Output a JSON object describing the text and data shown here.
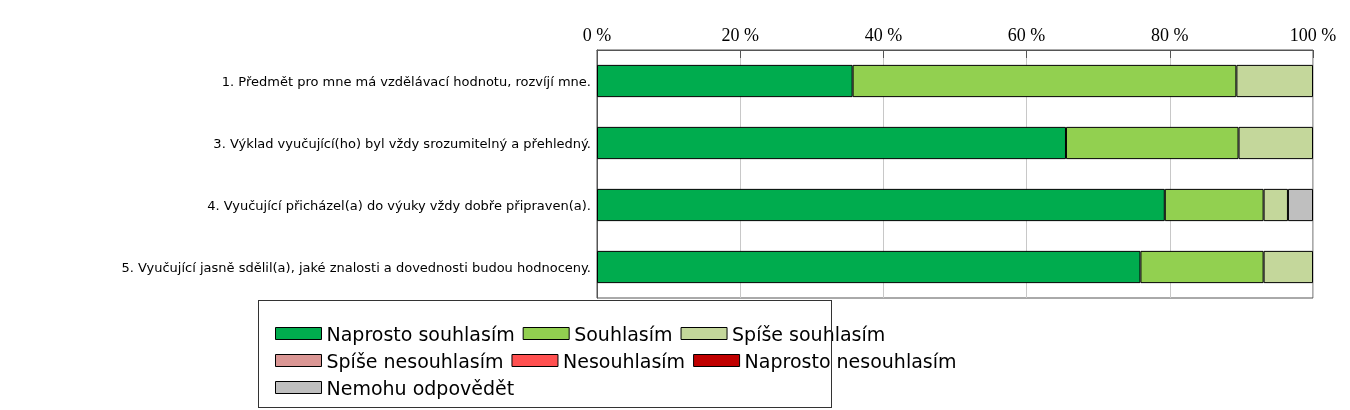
{
  "chart_data": {
    "type": "bar",
    "orientation": "horizontal",
    "stacked": true,
    "categories": [
      "1. Předmět pro mne má vzdělávací hodnotu, rozvíjí mne.",
      "3. Výklad vyučující(ho) byl vždy srozumitelný a přehledný.",
      "4. Vyučující přicházel(a) do výuky vždy dobře připraven(a).",
      "5. Vyučující jasně sdělil(a), jaké znalosti a dovednosti budou hodnoceny."
    ],
    "series": [
      {
        "name": "Naprosto souhlasím",
        "color": "#00ac4e",
        "values": [
          35.7,
          65.5,
          79.3,
          75.9
        ]
      },
      {
        "name": "Souhlasím",
        "color": "#92d050",
        "values": [
          53.6,
          24.1,
          13.8,
          17.2
        ]
      },
      {
        "name": "Spíše souhlasím",
        "color": "#c4d79b",
        "values": [
          10.7,
          10.4,
          3.4,
          6.9
        ]
      },
      {
        "name": "Spíše nesouhlasím",
        "color": "#da9694",
        "values": [
          0,
          0,
          0,
          0
        ]
      },
      {
        "name": "Nesouhlasím",
        "color": "#ff5050",
        "values": [
          0,
          0,
          0,
          0
        ]
      },
      {
        "name": "Naprosto nesouhlasím",
        "color": "#c00000",
        "values": [
          0,
          0,
          0,
          0
        ]
      },
      {
        "name": "Nemohu odpovědět",
        "color": "#bfbfbf",
        "values": [
          0,
          0,
          3.5,
          0
        ]
      }
    ],
    "xlim": [
      0,
      100
    ],
    "xticks": [
      {
        "value": 0,
        "label": "0 %"
      },
      {
        "value": 20,
        "label": "20 %"
      },
      {
        "value": 40,
        "label": "40 %"
      },
      {
        "value": 60,
        "label": "60 %"
      },
      {
        "value": 80,
        "label": "80 %"
      },
      {
        "value": 100,
        "label": "100 %"
      }
    ],
    "grid": "x",
    "legend": "bottom"
  }
}
